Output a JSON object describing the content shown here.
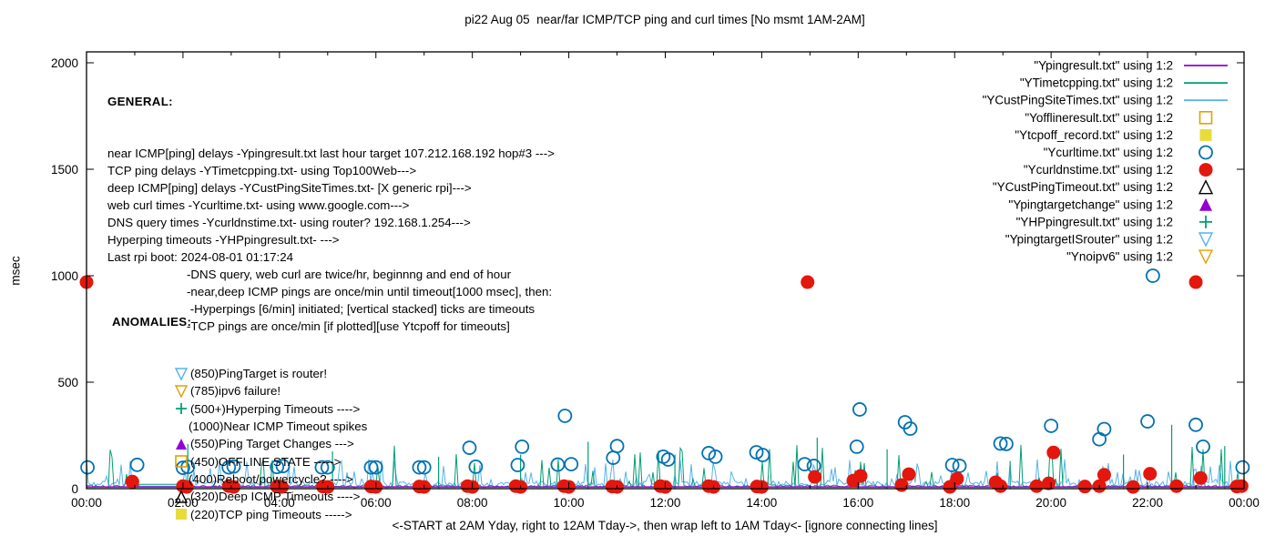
{
  "title": "pi22 Aug 05  near/far ICMP/TCP ping and curl times [No msmt 1AM-2AM]",
  "annotations": {
    "general": {
      "heading": "GENERAL:",
      "lines": [
        "near ICMP[ping] delays -Ypingresult.txt last hour target 107.212.168.192 hop#3 --->",
        "TCP ping delays -YTimetcpping.txt- using Top100Web--->",
        "deep ICMP[ping] delays -YCustPingSiteTimes.txt- [X generic rpi]--->",
        "web curl times -Ycurltime.txt- using www.google.com--->",
        "DNS query times -Ycurldnstime.txt- using router? 192.168.1.254--->",
        "Hyperping timeouts -YHPpingresult.txt- --->",
        "Last rpi boot: 2024-08-01 01:17:24"
      ],
      "sub_lines": [
        "-DNS query, web curl are twice/hr, beginnng and end of hour",
        "-near,deep ICMP pings are once/min until timeout[1000 msec], then:",
        " -Hyperpings [6/min] initiated; [vertical stacked] ticks are timeouts",
        "-TCP pings are once/min [if plotted][use Ytcpoff for timeouts]"
      ]
    },
    "anomalies": {
      "heading": "ANOMALIES:",
      "items": [
        {
          "marker": "triangle-down-open",
          "color": "#56b4e9",
          "text": "(850)PingTarget is router!"
        },
        {
          "marker": "triangle-down-open",
          "color": "#e69f00",
          "text": "(785)ipv6 failure!"
        },
        {
          "marker": "plus",
          "color": "#009e73",
          "text": "(500+)Hyperping Timeouts ---->"
        },
        {
          "marker": "none",
          "color": "",
          "text": "(1000)Near ICMP Timeout spikes"
        },
        {
          "marker": "triangle-up-filled",
          "color": "#9400d3",
          "text": "(550)Ping Target Changes --->"
        },
        {
          "marker": "square-open",
          "color": "#e69f00",
          "text": "(450)OFFLINE STATE ----->"
        },
        {
          "marker": "none",
          "color": "",
          "text": "(400)Reboot/powercycle? ---->"
        },
        {
          "marker": "triangle-up-open",
          "color": "#000000",
          "text": "(320)Deep ICMP Timeouts ---->"
        },
        {
          "marker": "square-filled",
          "color": "#e8dc3c",
          "text": "(220)TCP ping Timeouts ----->"
        }
      ]
    }
  },
  "chart_data": {
    "type": "line",
    "title": "pi22 Aug 05  near/far ICMP/TCP ping and curl times [No msmt 1AM-2AM]",
    "xlabel": "<-START at 2AM Yday, right to 12AM Tday->, then wrap left to 1AM Tday<- [ignore connecting lines]",
    "ylabel": "msec",
    "ylim": [
      0,
      2050
    ],
    "xlim_hours": [
      0,
      24
    ],
    "x_tick_labels": [
      "00:00",
      "02:00",
      "04:00",
      "06:00",
      "08:00",
      "10:00",
      "12:00",
      "14:00",
      "16:00",
      "18:00",
      "20:00",
      "22:00",
      "00:00"
    ],
    "y_tick_labels": [
      "0",
      "500",
      "1000",
      "1500",
      "2000"
    ],
    "y_tick_values": [
      0,
      500,
      1000,
      1500,
      2000
    ],
    "grid": false,
    "legend_position": "top-right-inside",
    "no_measurement_gap_hours": [
      1.08,
      1.98
    ],
    "legend": [
      {
        "label": "\"Ypingresult.txt\" using 1:2",
        "symbol": "line",
        "color": "#9400d3"
      },
      {
        "label": "\"YTimetcpping.txt\" using 1:2",
        "symbol": "line",
        "color": "#009e73"
      },
      {
        "label": "\"YCustPingSiteTimes.txt\" using 1:2",
        "symbol": "line",
        "color": "#56b4e9"
      },
      {
        "label": "\"Yofflineresult.txt\" using 1:2",
        "symbol": "square-open",
        "color": "#e69f00"
      },
      {
        "label": "\"Ytcpoff_record.txt\" using 1:2",
        "symbol": "square-filled",
        "color": "#e8dc3c"
      },
      {
        "label": "\"Ycurltime.txt\" using 1:2",
        "symbol": "circle-open",
        "color": "#0072b2"
      },
      {
        "label": "\"Ycurldnstime.txt\" using 1:2",
        "symbol": "circle-filled",
        "color": "#e3170d"
      },
      {
        "label": "\"YCustPingTimeout.txt\" using 1:2",
        "symbol": "triangle-up-open",
        "color": "#000000"
      },
      {
        "label": "\"Ypingtargetchange\" using 1:2",
        "symbol": "triangle-up-filled",
        "color": "#9400d3"
      },
      {
        "label": "\"YHPpingresult.txt\" using 1:2",
        "symbol": "plus",
        "color": "#009e73"
      },
      {
        "label": "\"YpingtargetISrouter\" using 1:2",
        "symbol": "triangle-down-open",
        "color": "#56b4e9"
      },
      {
        "label": "\"Ynoipv6\" using 1:2",
        "symbol": "triangle-down-open",
        "color": "#e69f00"
      }
    ],
    "point_series": [
      {
        "name": "Ycurltime.txt",
        "marker": "circle-open",
        "color": "#0072b2",
        "points": [
          [
            0.02,
            100
          ],
          [
            1.05,
            112
          ],
          [
            2.0,
            98
          ],
          [
            2.1,
            102
          ],
          [
            2.95,
            100
          ],
          [
            3.05,
            104
          ],
          [
            3.95,
            102
          ],
          [
            4.07,
            106
          ],
          [
            4.88,
            100
          ],
          [
            5.0,
            100
          ],
          [
            5.9,
            100
          ],
          [
            6.0,
            100
          ],
          [
            6.9,
            100
          ],
          [
            7.0,
            100
          ],
          [
            7.94,
            192
          ],
          [
            8.07,
            103
          ],
          [
            8.94,
            111
          ],
          [
            9.03,
            197
          ],
          [
            9.77,
            113
          ],
          [
            9.92,
            342
          ],
          [
            10.05,
            115
          ],
          [
            10.92,
            145
          ],
          [
            11.0,
            200
          ],
          [
            11.96,
            150
          ],
          [
            12.06,
            137
          ],
          [
            12.9,
            167
          ],
          [
            13.04,
            150
          ],
          [
            13.89,
            171
          ],
          [
            14.02,
            158
          ],
          [
            14.89,
            115
          ],
          [
            15.08,
            107
          ],
          [
            15.97,
            197
          ],
          [
            16.03,
            372
          ],
          [
            16.97,
            312
          ],
          [
            17.08,
            282
          ],
          [
            17.95,
            111
          ],
          [
            18.1,
            107
          ],
          [
            18.95,
            212
          ],
          [
            19.07,
            210
          ],
          [
            20.0,
            295
          ],
          [
            21.0,
            232
          ],
          [
            21.1,
            280
          ],
          [
            22.0,
            316
          ],
          [
            22.11,
            1000
          ],
          [
            23.0,
            300
          ],
          [
            23.15,
            197
          ],
          [
            23.97,
            100
          ]
        ]
      },
      {
        "name": "Ycurldnstime.txt",
        "marker": "circle-filled",
        "color": "#e3170d",
        "points": [
          [
            0.0,
            970
          ],
          [
            0.95,
            33
          ],
          [
            2.0,
            12
          ],
          [
            2.08,
            8
          ],
          [
            2.95,
            12
          ],
          [
            3.05,
            8
          ],
          [
            3.95,
            10
          ],
          [
            4.05,
            8
          ],
          [
            4.9,
            10
          ],
          [
            5.0,
            8
          ],
          [
            5.9,
            10
          ],
          [
            6.0,
            8
          ],
          [
            6.9,
            10
          ],
          [
            7.0,
            8
          ],
          [
            7.9,
            12
          ],
          [
            8.0,
            8
          ],
          [
            8.9,
            12
          ],
          [
            9.0,
            8
          ],
          [
            9.9,
            12
          ],
          [
            10.0,
            8
          ],
          [
            10.9,
            10
          ],
          [
            11.0,
            8
          ],
          [
            11.9,
            12
          ],
          [
            12.0,
            8
          ],
          [
            12.9,
            12
          ],
          [
            13.0,
            8
          ],
          [
            13.9,
            10
          ],
          [
            14.0,
            8
          ],
          [
            14.95,
            970
          ],
          [
            15.1,
            55
          ],
          [
            15.9,
            38
          ],
          [
            16.05,
            60
          ],
          [
            16.9,
            17
          ],
          [
            17.05,
            68
          ],
          [
            17.9,
            8
          ],
          [
            18.05,
            47
          ],
          [
            18.85,
            30
          ],
          [
            18.95,
            12
          ],
          [
            19.7,
            12
          ],
          [
            19.95,
            25
          ],
          [
            20.05,
            170
          ],
          [
            20.7,
            10
          ],
          [
            21.0,
            12
          ],
          [
            21.1,
            65
          ],
          [
            21.7,
            8
          ],
          [
            22.05,
            70
          ],
          [
            22.6,
            12
          ],
          [
            23.0,
            970
          ],
          [
            23.1,
            50
          ],
          [
            23.85,
            10
          ],
          [
            23.95,
            12
          ]
        ]
      }
    ],
    "noise_series": [
      {
        "name": "YCustPingSiteTimes.txt",
        "color": "#56b4e9",
        "seed": 7,
        "base": 8,
        "jitter": 28,
        "spike_prob": 0.17,
        "spike_max": 115,
        "gap_value": 12,
        "tall_spikes": []
      },
      {
        "name": "YTimetcpping.txt",
        "color": "#009e73",
        "seed": 41,
        "base": 5,
        "jitter": 13,
        "spike_prob": 0.09,
        "spike_max": 185,
        "gap_value": 20,
        "tall_spikes": [
          [
            2.1,
            210
          ],
          [
            5.1,
            175
          ],
          [
            7.3,
            150
          ],
          [
            9.0,
            160
          ],
          [
            10.4,
            220
          ],
          [
            12.2,
            160
          ],
          [
            15.15,
            240
          ],
          [
            16.6,
            185
          ],
          [
            19.15,
            130
          ],
          [
            21.5,
            160
          ],
          [
            22.5,
            300
          ],
          [
            23.6,
            200
          ]
        ]
      }
    ],
    "flat_series": [
      {
        "name": "Ypingresult.txt",
        "color": "#9400d3",
        "value": 8
      }
    ]
  }
}
